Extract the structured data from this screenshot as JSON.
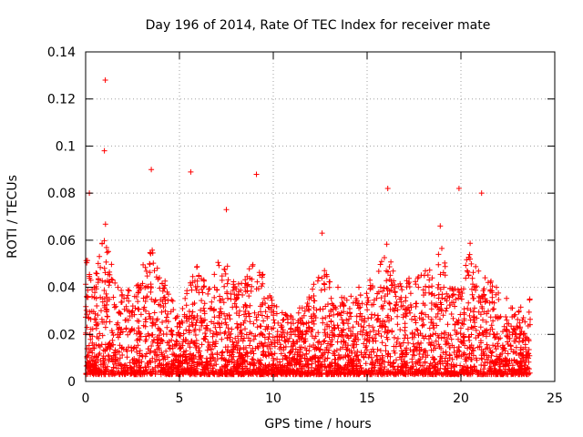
{
  "chart_data": {
    "type": "scatter",
    "title": "Day 196 of 2014, Rate Of TEC Index for receiver mate",
    "xlabel": "GPS time / hours",
    "ylabel": "ROTI / TECUs",
    "xlim": [
      0,
      25
    ],
    "ylim": [
      0,
      0.14
    ],
    "x_ticks": [
      0,
      5,
      10,
      15,
      20,
      25
    ],
    "y_ticks": [
      0,
      0.02,
      0.04,
      0.06,
      0.08,
      0.1,
      0.12,
      0.14
    ],
    "x_tick_labels": [
      "0",
      "5",
      "10",
      "15",
      "20",
      "25"
    ],
    "y_tick_labels": [
      "0",
      "0.02",
      "0.04",
      "0.06",
      "0.08",
      "0.1",
      "0.12",
      "0.14"
    ],
    "grid": true,
    "marker": "+",
    "color": "#ff0000",
    "point_count_note": "dense scatter of ROTI values for all satellites; representative points below",
    "highlight_points": [
      {
        "x": 1.05,
        "y": 0.128
      },
      {
        "x": 1.0,
        "y": 0.098
      },
      {
        "x": 3.5,
        "y": 0.09
      },
      {
        "x": 5.6,
        "y": 0.089
      },
      {
        "x": 9.1,
        "y": 0.088
      },
      {
        "x": 16.1,
        "y": 0.082
      },
      {
        "x": 19.9,
        "y": 0.082
      },
      {
        "x": 21.1,
        "y": 0.08
      },
      {
        "x": 0.2,
        "y": 0.08
      },
      {
        "x": 7.5,
        "y": 0.073
      },
      {
        "x": 18.9,
        "y": 0.066
      },
      {
        "x": 12.6,
        "y": 0.063
      }
    ],
    "envelope": {
      "hours": [
        0,
        0.5,
        1,
        1.5,
        2,
        2.5,
        3,
        3.5,
        4,
        4.5,
        5,
        5.5,
        6,
        6.5,
        7,
        7.5,
        8,
        8.5,
        9,
        9.5,
        10,
        10.5,
        11,
        11.5,
        12,
        12.5,
        13,
        13.5,
        14,
        14.5,
        15,
        15.5,
        16,
        16.5,
        17,
        17.5,
        18,
        18.5,
        19,
        19.5,
        20,
        20.5,
        21,
        21.5,
        22,
        22.5,
        23,
        23.7
      ],
      "upper_roti": [
        0.055,
        0.045,
        0.07,
        0.045,
        0.04,
        0.04,
        0.05,
        0.06,
        0.045,
        0.04,
        0.025,
        0.045,
        0.05,
        0.04,
        0.05,
        0.055,
        0.04,
        0.045,
        0.06,
        0.045,
        0.035,
        0.03,
        0.028,
        0.032,
        0.04,
        0.05,
        0.045,
        0.04,
        0.035,
        0.04,
        0.045,
        0.045,
        0.06,
        0.045,
        0.045,
        0.045,
        0.05,
        0.05,
        0.058,
        0.04,
        0.04,
        0.06,
        0.05,
        0.045,
        0.04,
        0.035,
        0.03,
        0.036
      ]
    }
  }
}
